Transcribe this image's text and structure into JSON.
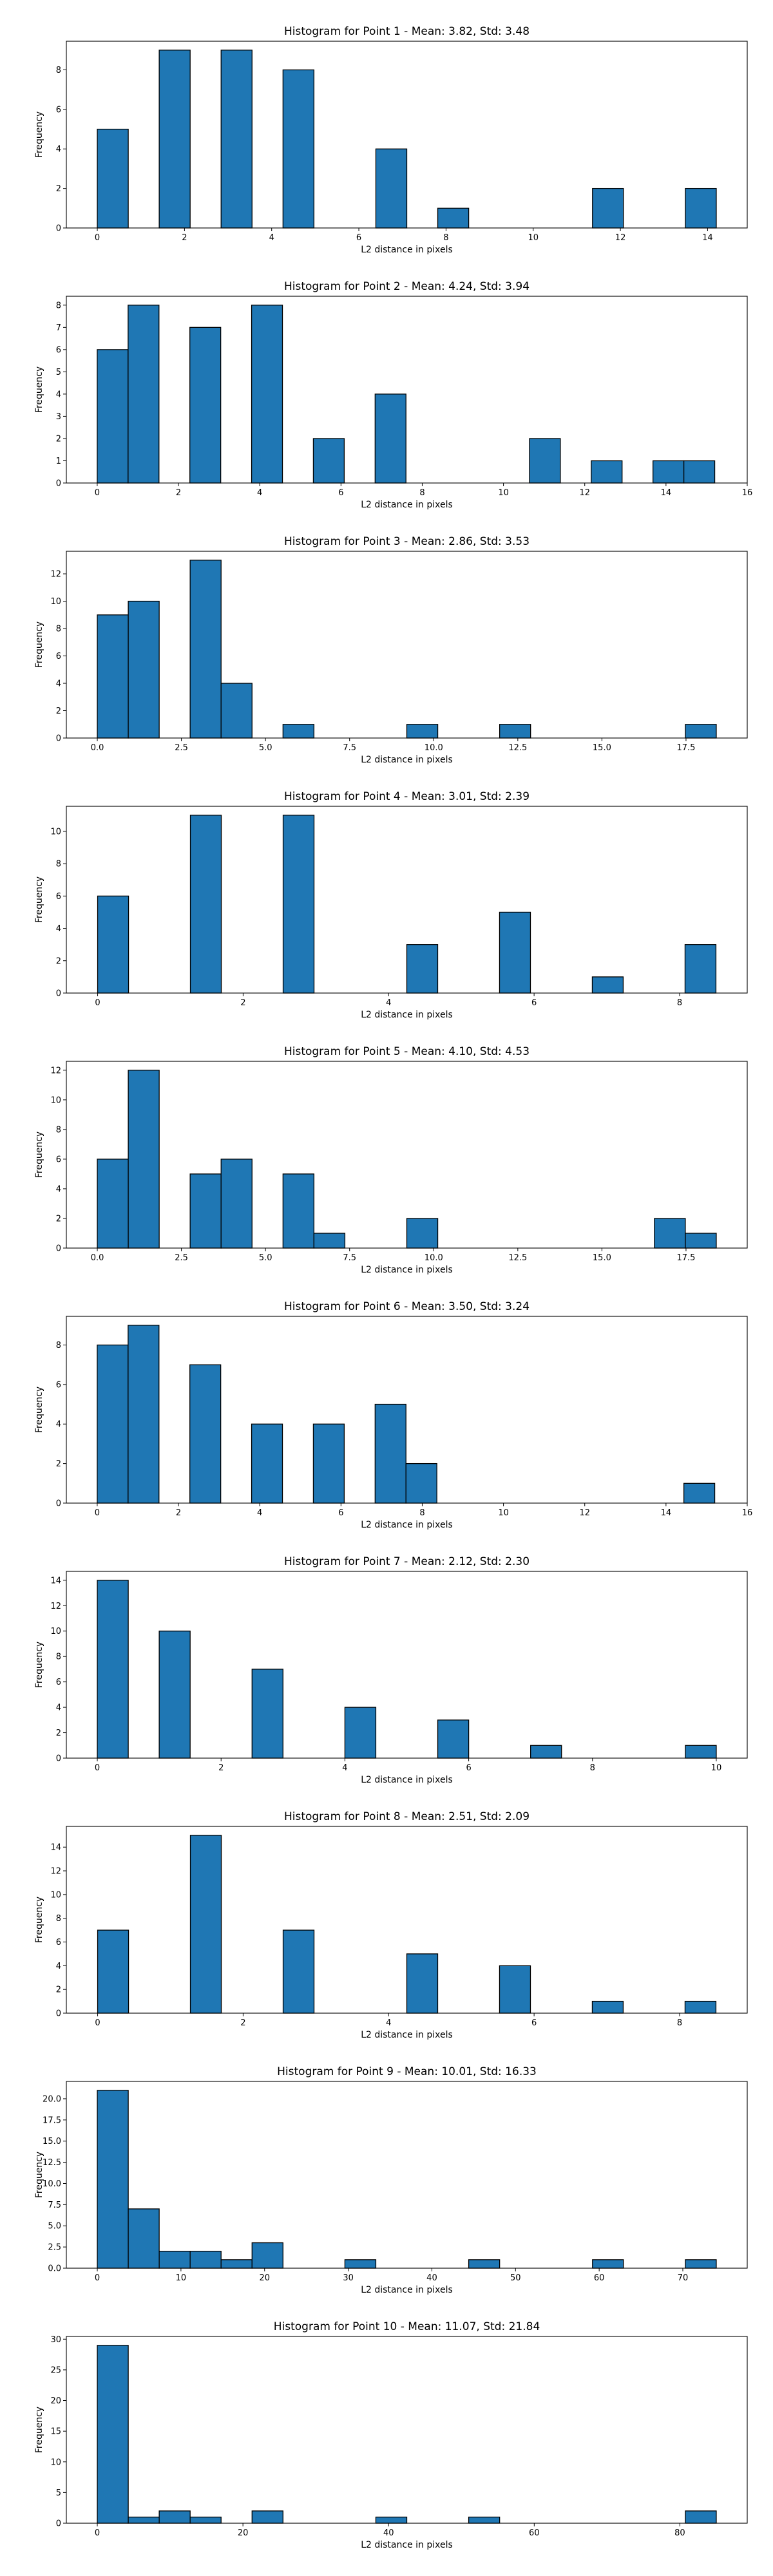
{
  "figure": {
    "bar_color": "#1f77b4",
    "edge_color": "#000000"
  },
  "chart_data": [
    {
      "type": "bar",
      "title": "Histogram for Point 1 - Mean: 3.82, Std: 3.48",
      "xlabel": "L2 distance in pixels",
      "ylabel": "Frequency",
      "xlim": [
        -0.71,
        14.91
      ],
      "ylim": [
        0,
        9.45
      ],
      "xticks": [
        0,
        2,
        4,
        6,
        8,
        10,
        12,
        14
      ],
      "xtick_labels": [
        "0",
        "2",
        "4",
        "6",
        "8",
        "10",
        "12",
        "14"
      ],
      "yticks": [
        0,
        2,
        4,
        6,
        8
      ],
      "ytick_labels": [
        "0",
        "2",
        "4",
        "6",
        "8"
      ],
      "bin_edges": [
        0.0,
        0.71,
        1.42,
        2.13,
        2.84,
        3.55,
        4.26,
        4.97,
        5.68,
        6.39,
        7.1,
        7.81,
        8.52,
        9.23,
        9.94,
        10.65,
        11.36,
        12.07,
        12.78,
        13.49,
        14.2
      ],
      "values": [
        5,
        0,
        9,
        0,
        9,
        0,
        8,
        0,
        0,
        4,
        0,
        1,
        0,
        0,
        0,
        0,
        2,
        0,
        0,
        2
      ]
    },
    {
      "type": "bar",
      "title": "Histogram for Point 2 - Mean: 4.24, Std: 3.94",
      "xlabel": "L2 distance in pixels",
      "ylabel": "Frequency",
      "xlim": [
        -0.76,
        16.0
      ],
      "ylim": [
        0,
        8.4
      ],
      "xticks": [
        0,
        2,
        4,
        6,
        8,
        10,
        12,
        14,
        16
      ],
      "xtick_labels": [
        "0",
        "2",
        "4",
        "6",
        "8",
        "10",
        "12",
        "14",
        "16"
      ],
      "yticks": [
        0,
        1,
        2,
        3,
        4,
        5,
        6,
        7,
        8
      ],
      "ytick_labels": [
        "0",
        "1",
        "2",
        "3",
        "4",
        "5",
        "6",
        "7",
        "8"
      ],
      "bin_edges": [
        0.0,
        0.76,
        1.52,
        2.28,
        3.04,
        3.8,
        4.56,
        5.32,
        6.08,
        6.84,
        7.6,
        8.36,
        9.12,
        9.88,
        10.64,
        11.4,
        12.16,
        12.92,
        13.68,
        14.44,
        15.2
      ],
      "values": [
        6,
        8,
        0,
        7,
        0,
        8,
        0,
        2,
        0,
        4,
        0,
        0,
        0,
        0,
        2,
        0,
        1,
        0,
        1,
        1
      ]
    },
    {
      "type": "bar",
      "title": "Histogram for Point 3 - Mean: 2.86, Std: 3.53",
      "xlabel": "L2 distance in pixels",
      "ylabel": "Frequency",
      "xlim": [
        -0.92,
        19.32
      ],
      "ylim": [
        0,
        13.65
      ],
      "xticks": [
        0,
        2.5,
        5,
        7.5,
        10,
        12.5,
        15,
        17.5
      ],
      "xtick_labels": [
        "0.0",
        "2.5",
        "5.0",
        "7.5",
        "10.0",
        "12.5",
        "15.0",
        "17.5"
      ],
      "yticks": [
        0,
        2,
        4,
        6,
        8,
        10,
        12
      ],
      "ytick_labels": [
        "0",
        "2",
        "4",
        "6",
        "8",
        "10",
        "12"
      ],
      "bin_edges": [
        0.0,
        0.92,
        1.84,
        2.76,
        3.68,
        4.6,
        5.52,
        6.44,
        7.36,
        8.28,
        9.2,
        10.12,
        11.04,
        11.96,
        12.88,
        13.8,
        14.72,
        15.64,
        16.56,
        17.48,
        18.4
      ],
      "values": [
        9,
        10,
        0,
        13,
        4,
        0,
        1,
        0,
        0,
        0,
        1,
        0,
        0,
        1,
        0,
        0,
        0,
        0,
        0,
        1
      ]
    },
    {
      "type": "bar",
      "title": "Histogram for Point 4 - Mean: 3.01, Std: 2.39",
      "xlabel": "L2 distance in pixels",
      "ylabel": "Frequency",
      "xlim": [
        -0.43,
        8.93
      ],
      "ylim": [
        0,
        11.55
      ],
      "xticks": [
        0,
        2,
        4,
        6,
        8
      ],
      "xtick_labels": [
        "0",
        "2",
        "4",
        "6",
        "8"
      ],
      "yticks": [
        0,
        2,
        4,
        6,
        8,
        10
      ],
      "ytick_labels": [
        "0",
        "2",
        "4",
        "6",
        "8",
        "10"
      ],
      "bin_edges": [
        0.0,
        0.425,
        0.85,
        1.275,
        1.7,
        2.125,
        2.55,
        2.975,
        3.4,
        3.825,
        4.25,
        4.675,
        5.1,
        5.525,
        5.95,
        6.375,
        6.8,
        7.225,
        7.65,
        8.075,
        8.5
      ],
      "values": [
        6,
        0,
        0,
        11,
        0,
        0,
        11,
        0,
        0,
        0,
        3,
        0,
        0,
        5,
        0,
        0,
        1,
        0,
        0,
        3
      ]
    },
    {
      "type": "bar",
      "title": "Histogram for Point 5 - Mean: 4.10, Std: 4.53",
      "xlabel": "L2 distance in pixels",
      "ylabel": "Frequency",
      "xlim": [
        -0.92,
        19.32
      ],
      "ylim": [
        0,
        12.6
      ],
      "xticks": [
        0,
        2.5,
        5,
        7.5,
        10,
        12.5,
        15,
        17.5
      ],
      "xtick_labels": [
        "0.0",
        "2.5",
        "5.0",
        "7.5",
        "10.0",
        "12.5",
        "15.0",
        "17.5"
      ],
      "yticks": [
        0,
        2,
        4,
        6,
        8,
        10,
        12
      ],
      "ytick_labels": [
        "0",
        "2",
        "4",
        "6",
        "8",
        "10",
        "12"
      ],
      "bin_edges": [
        0.0,
        0.92,
        1.84,
        2.76,
        3.68,
        4.6,
        5.52,
        6.44,
        7.36,
        8.28,
        9.2,
        10.12,
        11.04,
        11.96,
        12.88,
        13.8,
        14.72,
        15.64,
        16.56,
        17.48,
        18.4
      ],
      "values": [
        6,
        12,
        0,
        5,
        6,
        0,
        5,
        1,
        0,
        0,
        2,
        0,
        0,
        0,
        0,
        0,
        0,
        0,
        2,
        1
      ]
    },
    {
      "type": "bar",
      "title": "Histogram for Point 6 - Mean: 3.50, Std: 3.24",
      "xlabel": "L2 distance in pixels",
      "ylabel": "Frequency",
      "xlim": [
        -0.76,
        16.0
      ],
      "ylim": [
        0,
        9.45
      ],
      "xticks": [
        0,
        2,
        4,
        6,
        8,
        10,
        12,
        14,
        16
      ],
      "xtick_labels": [
        "0",
        "2",
        "4",
        "6",
        "8",
        "10",
        "12",
        "14",
        "16"
      ],
      "yticks": [
        0,
        2,
        4,
        6,
        8
      ],
      "ytick_labels": [
        "0",
        "2",
        "4",
        "6",
        "8"
      ],
      "bin_edges": [
        0.0,
        0.76,
        1.52,
        2.28,
        3.04,
        3.8,
        4.56,
        5.32,
        6.08,
        6.84,
        7.6,
        8.36,
        9.12,
        9.88,
        10.64,
        11.4,
        12.16,
        12.92,
        13.68,
        14.44,
        15.2
      ],
      "values": [
        8,
        9,
        0,
        7,
        0,
        4,
        0,
        4,
        0,
        5,
        2,
        0,
        0,
        0,
        0,
        0,
        0,
        0,
        0,
        1
      ]
    },
    {
      "type": "bar",
      "title": "Histogram for Point 7 - Mean: 2.12, Std: 2.30",
      "xlabel": "L2 distance in pixels",
      "ylabel": "Frequency",
      "xlim": [
        -0.5,
        10.5
      ],
      "ylim": [
        0,
        14.7
      ],
      "xticks": [
        0,
        2,
        4,
        6,
        8,
        10
      ],
      "xtick_labels": [
        "0",
        "2",
        "4",
        "6",
        "8",
        "10"
      ],
      "yticks": [
        0,
        2,
        4,
        6,
        8,
        10,
        12,
        14
      ],
      "ytick_labels": [
        "0",
        "2",
        "4",
        "6",
        "8",
        "10",
        "12",
        "14"
      ],
      "bin_edges": [
        0.0,
        0.5,
        1.0,
        1.5,
        2.0,
        2.5,
        3.0,
        3.5,
        4.0,
        4.5,
        5.0,
        5.5,
        6.0,
        6.5,
        7.0,
        7.5,
        8.0,
        8.5,
        9.0,
        9.5,
        10.0
      ],
      "values": [
        14,
        0,
        10,
        0,
        0,
        7,
        0,
        0,
        4,
        0,
        0,
        3,
        0,
        0,
        1,
        0,
        0,
        0,
        0,
        1
      ]
    },
    {
      "type": "bar",
      "title": "Histogram for Point 8 - Mean: 2.51, Std: 2.09",
      "xlabel": "L2 distance in pixels",
      "ylabel": "Frequency",
      "xlim": [
        -0.43,
        8.93
      ],
      "ylim": [
        0,
        15.75
      ],
      "xticks": [
        0,
        2,
        4,
        6,
        8
      ],
      "xtick_labels": [
        "0",
        "2",
        "4",
        "6",
        "8"
      ],
      "yticks": [
        0,
        2,
        4,
        6,
        8,
        10,
        12,
        14
      ],
      "ytick_labels": [
        "0",
        "2",
        "4",
        "6",
        "8",
        "10",
        "12",
        "14"
      ],
      "bin_edges": [
        0.0,
        0.425,
        0.85,
        1.275,
        1.7,
        2.125,
        2.55,
        2.975,
        3.4,
        3.825,
        4.25,
        4.675,
        5.1,
        5.525,
        5.95,
        6.375,
        6.8,
        7.225,
        7.65,
        8.075,
        8.5
      ],
      "values": [
        7,
        0,
        0,
        15,
        0,
        0,
        7,
        0,
        0,
        0,
        5,
        0,
        0,
        4,
        0,
        0,
        1,
        0,
        0,
        1
      ]
    },
    {
      "type": "bar",
      "title": "Histogram for Point 9 - Mean: 10.01, Std: 16.33",
      "xlabel": "L2 distance in pixels",
      "ylabel": "Frequency",
      "xlim": [
        -3.7,
        77.7
      ],
      "ylim": [
        0,
        22.05
      ],
      "xticks": [
        0,
        10,
        20,
        30,
        40,
        50,
        60,
        70
      ],
      "xtick_labels": [
        "0",
        "10",
        "20",
        "30",
        "40",
        "50",
        "60",
        "70"
      ],
      "yticks": [
        0,
        2.5,
        5,
        7.5,
        10,
        12.5,
        15,
        17.5,
        20
      ],
      "ytick_labels": [
        "0.0",
        "2.5",
        "5.0",
        "7.5",
        "10.0",
        "12.5",
        "15.0",
        "17.5",
        "20.0"
      ],
      "bin_edges": [
        0.0,
        3.7,
        7.4,
        11.1,
        14.8,
        18.5,
        22.2,
        25.9,
        29.6,
        33.3,
        37.0,
        40.7,
        44.4,
        48.1,
        51.8,
        55.5,
        59.2,
        62.9,
        66.6,
        70.3,
        74.0
      ],
      "values": [
        21,
        7,
        2,
        2,
        1,
        3,
        0,
        0,
        1,
        0,
        0,
        0,
        1,
        0,
        0,
        0,
        1,
        0,
        0,
        1
      ]
    },
    {
      "type": "bar",
      "title": "Histogram for Point 10 - Mean: 11.07, Std: 21.84",
      "xlabel": "L2 distance in pixels",
      "ylabel": "Frequency",
      "xlim": [
        -4.25,
        89.25
      ],
      "ylim": [
        0,
        30.45
      ],
      "xticks": [
        0,
        20,
        40,
        60,
        80
      ],
      "xtick_labels": [
        "0",
        "20",
        "40",
        "60",
        "80"
      ],
      "yticks": [
        0,
        5,
        10,
        15,
        20,
        25,
        30
      ],
      "ytick_labels": [
        "0",
        "5",
        "10",
        "15",
        "20",
        "25",
        "30"
      ],
      "bin_edges": [
        0.0,
        4.25,
        8.5,
        12.75,
        17.0,
        21.25,
        25.5,
        29.75,
        34.0,
        38.25,
        42.5,
        46.75,
        51.0,
        55.25,
        59.5,
        63.75,
        68.0,
        72.25,
        76.5,
        80.75,
        85.0
      ],
      "values": [
        29,
        1,
        2,
        1,
        0,
        2,
        0,
        0,
        0,
        1,
        0,
        0,
        1,
        0,
        0,
        0,
        0,
        0,
        0,
        2
      ]
    }
  ]
}
